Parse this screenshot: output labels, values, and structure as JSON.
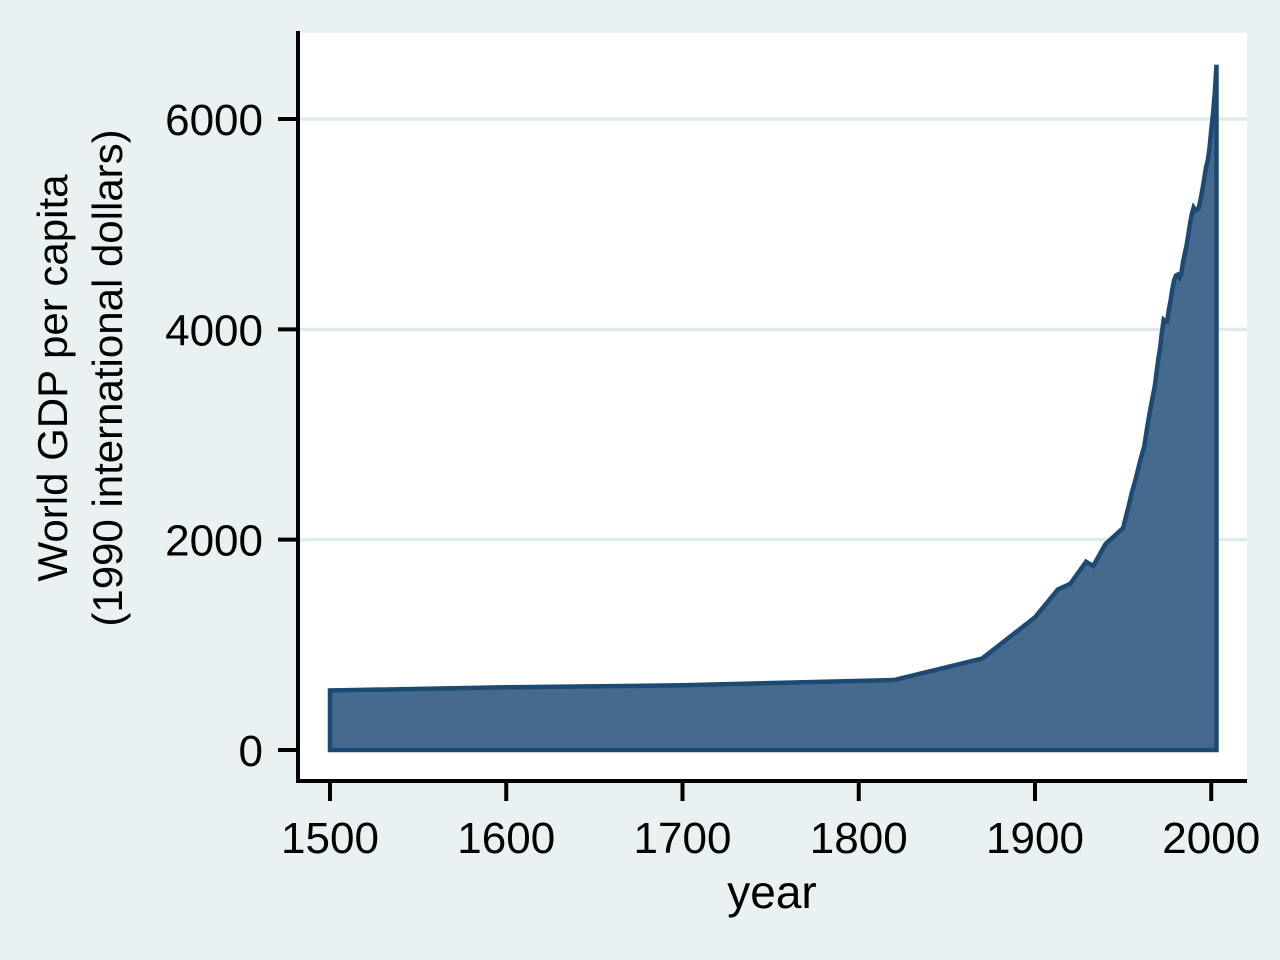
{
  "colors": {
    "background": "#eaf1f2",
    "plot_background": "#ffffff",
    "gridline": "#dfeaed",
    "area_fill": "#466a8d",
    "area_stroke": "#1c4a72",
    "axis_line": "#000000",
    "text": "#000000"
  },
  "chart_data": {
    "type": "area",
    "title": "",
    "xlabel": "year",
    "ylabel_lines": [
      "World GDP per capita",
      "(1990 international dollars)"
    ],
    "x_ticks": [
      1500,
      1600,
      1700,
      1800,
      1900,
      2000
    ],
    "y_ticks": [
      0,
      2000,
      4000,
      6000
    ],
    "xlim": [
      1482,
      2020
    ],
    "ylim": [
      -295,
      6820
    ],
    "grid": true,
    "legend_position": "none",
    "series": [
      {
        "name": "World GDP per capita (1990 international dollars)",
        "points": [
          [
            1500,
            566
          ],
          [
            1600,
            596
          ],
          [
            1700,
            615
          ],
          [
            1820,
            666
          ],
          [
            1870,
            870
          ],
          [
            1900,
            1262
          ],
          [
            1913,
            1526
          ],
          [
            1920,
            1580
          ],
          [
            1929,
            1790
          ],
          [
            1933,
            1750
          ],
          [
            1940,
            1958
          ],
          [
            1950,
            2111
          ],
          [
            1951,
            2180
          ],
          [
            1953,
            2310
          ],
          [
            1955,
            2450
          ],
          [
            1957,
            2570
          ],
          [
            1960,
            2773
          ],
          [
            1962,
            2890
          ],
          [
            1964,
            3105
          ],
          [
            1966,
            3290
          ],
          [
            1968,
            3460
          ],
          [
            1970,
            3725
          ],
          [
            1971,
            3820
          ],
          [
            1972,
            3970
          ],
          [
            1973,
            4091
          ],
          [
            1974,
            4080
          ],
          [
            1975,
            4075
          ],
          [
            1976,
            4190
          ],
          [
            1977,
            4280
          ],
          [
            1978,
            4390
          ],
          [
            1979,
            4470
          ],
          [
            1980,
            4512
          ],
          [
            1981,
            4520
          ],
          [
            1982,
            4494
          ],
          [
            1983,
            4530
          ],
          [
            1984,
            4640
          ],
          [
            1985,
            4720
          ],
          [
            1986,
            4800
          ],
          [
            1987,
            4900
          ],
          [
            1988,
            5010
          ],
          [
            1989,
            5100
          ],
          [
            1990,
            5157
          ],
          [
            1991,
            5130
          ],
          [
            1992,
            5140
          ],
          [
            1993,
            5160
          ],
          [
            1994,
            5240
          ],
          [
            1995,
            5330
          ],
          [
            1996,
            5430
          ],
          [
            1997,
            5540
          ],
          [
            1998,
            5600
          ],
          [
            1999,
            5720
          ],
          [
            2000,
            5900
          ],
          [
            2001,
            6050
          ],
          [
            2002,
            6250
          ],
          [
            2003,
            6516
          ]
        ],
        "baseline": 0
      }
    ]
  }
}
